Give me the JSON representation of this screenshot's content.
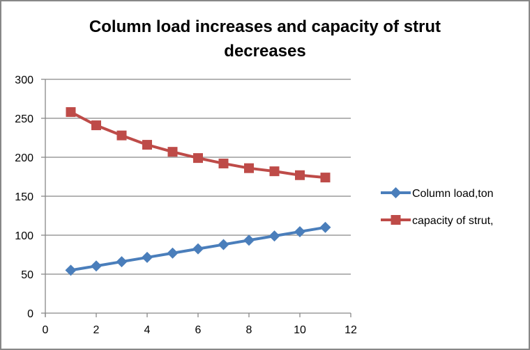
{
  "chart_data": {
    "type": "line",
    "title": "Column load increases and capacity of strut decreases",
    "title_lines": [
      "Column load increases and capacity of strut",
      "decreases"
    ],
    "xlabel": "",
    "ylabel": "",
    "x": [
      1,
      2,
      3,
      4,
      5,
      6,
      7,
      8,
      9,
      10,
      11
    ],
    "xlim": [
      0,
      12
    ],
    "ylim": [
      0,
      300
    ],
    "xticks": [
      "0",
      "2",
      "4",
      "6",
      "8",
      "10",
      "12"
    ],
    "yticks": [
      "0",
      "50",
      "100",
      "150",
      "200",
      "250",
      "300"
    ],
    "grid": "horizontal",
    "legend_position": "right",
    "series": [
      {
        "name": "Column load,ton",
        "color": "#4a7ebb",
        "marker": "diamond",
        "values": [
          55,
          60.5,
          66,
          71.5,
          77,
          82.5,
          88,
          93.5,
          99,
          104.5,
          110
        ]
      },
      {
        "name": "capacity of strut,",
        "color": "#be4b48",
        "marker": "square",
        "values": [
          258,
          241,
          228,
          216,
          207,
          199,
          192,
          186,
          182,
          177,
          174
        ]
      }
    ]
  }
}
